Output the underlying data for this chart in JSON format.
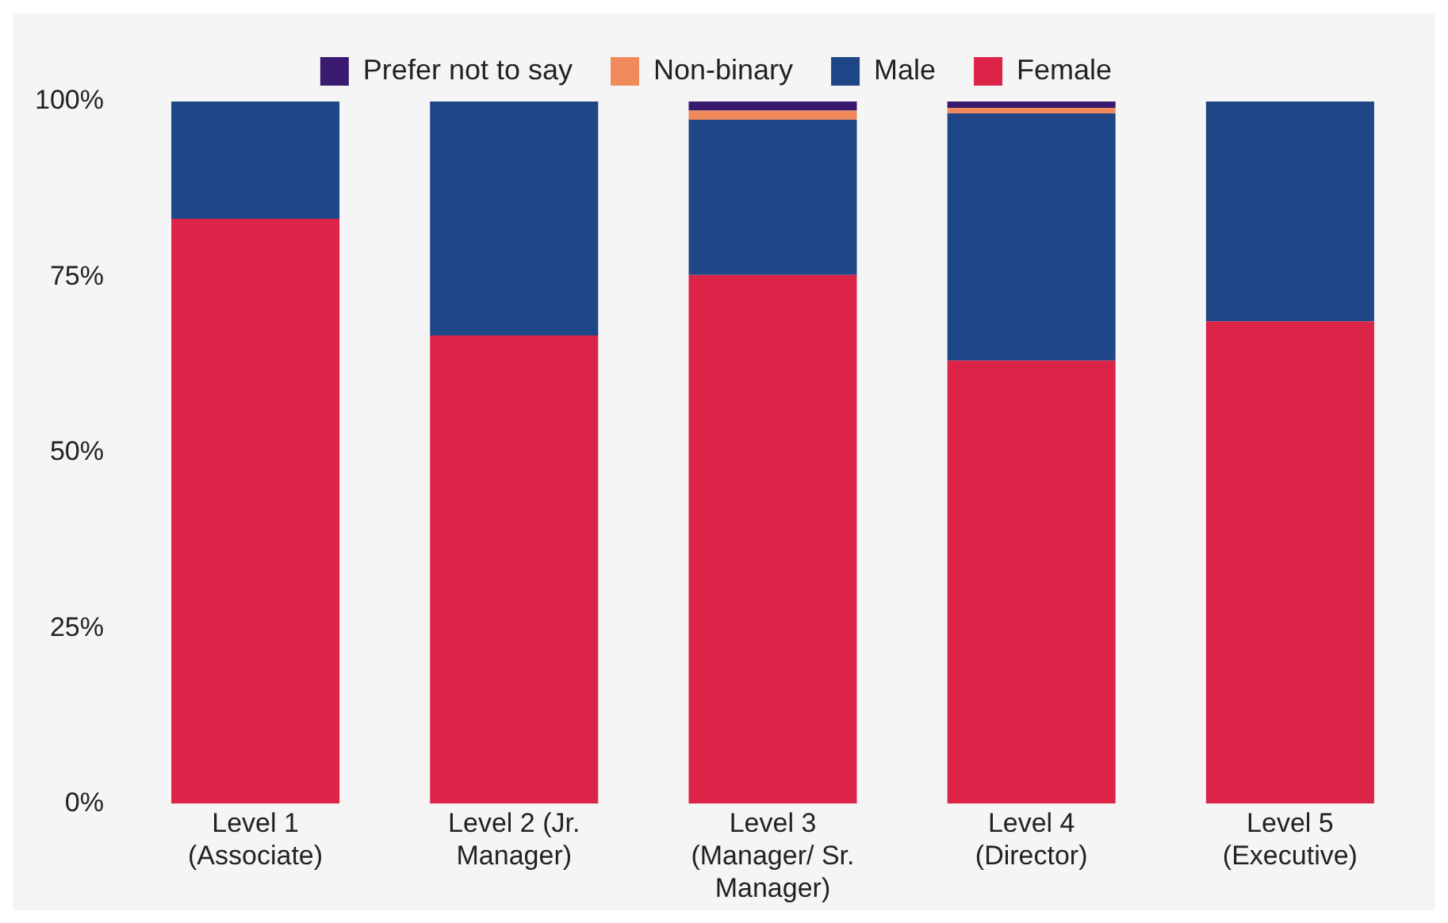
{
  "chart_data": {
    "type": "bar",
    "stacked": true,
    "categories": [
      "Level 1 (Associate)",
      "Level 2 (Jr. Manager)",
      "Level 3 (Manager/ Sr. Manager)",
      "Level 4 (Director)",
      "Level 5 (Executive)"
    ],
    "series": [
      {
        "name": "Female",
        "color": "#dc2449",
        "values": [
          83.3,
          66.7,
          75.3,
          63.1,
          68.7
        ]
      },
      {
        "name": "Male",
        "color": "#1f4788",
        "values": [
          16.7,
          33.3,
          22.1,
          35.2,
          31.3
        ]
      },
      {
        "name": "Non-binary",
        "color": "#f08a5a",
        "values": [
          0,
          0,
          1.3,
          0.8,
          0
        ]
      },
      {
        "name": "Prefer not to say",
        "color": "#3a1a6e",
        "values": [
          0,
          0,
          1.3,
          0.9,
          0
        ]
      }
    ],
    "ylim": [
      0,
      100
    ],
    "yticks": [
      {
        "value": 0,
        "label": "0%"
      },
      {
        "value": 25,
        "label": "25%"
      },
      {
        "value": 50,
        "label": "50%"
      },
      {
        "value": 75,
        "label": "75%"
      },
      {
        "value": 100,
        "label": "100%"
      }
    ],
    "grid": false,
    "legend": "top"
  }
}
